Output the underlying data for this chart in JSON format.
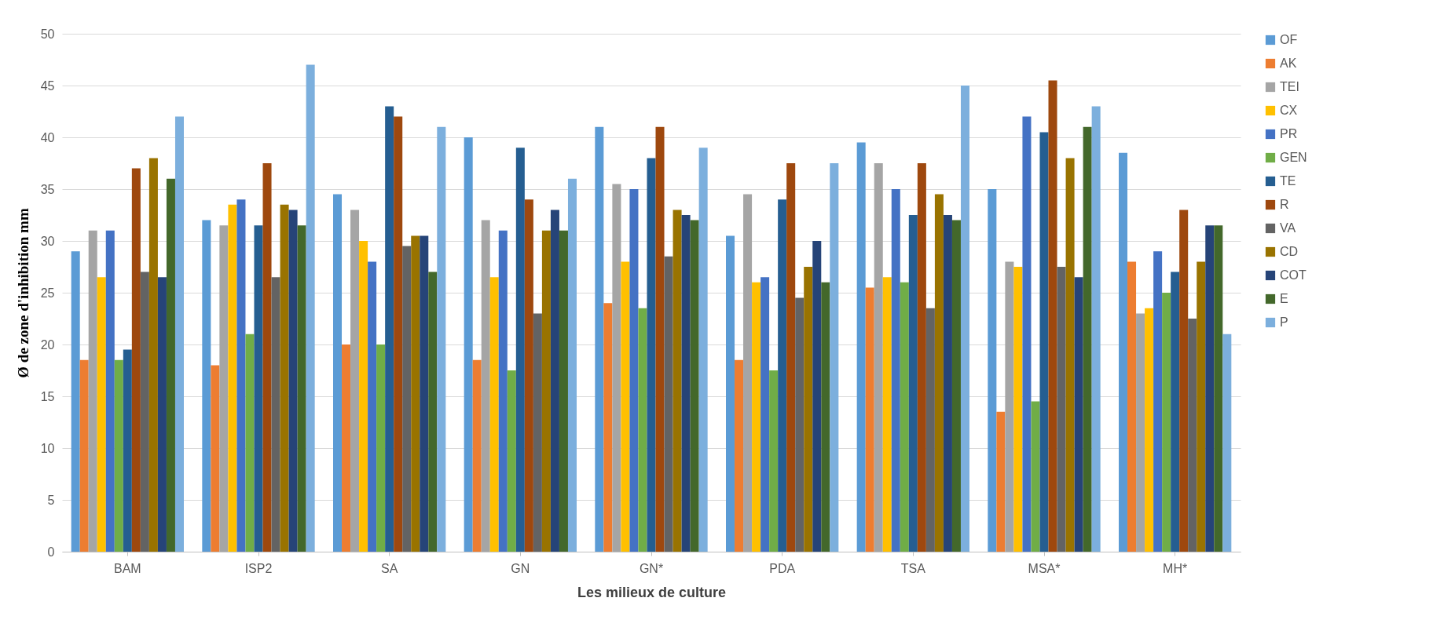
{
  "chart_data": {
    "type": "bar",
    "xlabel": "Les milieux de culture",
    "ylabel": "Ø de zone d'inhibition mm",
    "categories": [
      "BAM",
      "ISP2",
      "SA",
      "GN",
      "GN*",
      "PDA",
      "TSA",
      "MSA*",
      "MH*"
    ],
    "series": [
      {
        "name": "OF",
        "color": "#5b9bd5",
        "values": [
          29,
          32,
          34.5,
          40,
          41,
          30.5,
          39.5,
          35,
          38.5
        ]
      },
      {
        "name": "AK",
        "color": "#ed7d31",
        "values": [
          18.5,
          18,
          20,
          18.5,
          24,
          18.5,
          25.5,
          13.5,
          28
        ]
      },
      {
        "name": "TEI",
        "color": "#a5a5a5",
        "values": [
          31,
          31.5,
          33,
          32,
          35.5,
          34.5,
          37.5,
          28,
          23
        ]
      },
      {
        "name": "CX",
        "color": "#ffc000",
        "values": [
          26.5,
          33.5,
          30,
          26.5,
          28,
          26,
          26.5,
          27.5,
          23.5
        ]
      },
      {
        "name": "PR",
        "color": "#4472c4",
        "values": [
          31,
          34,
          28,
          31,
          35,
          26.5,
          35,
          42,
          29
        ]
      },
      {
        "name": "GEN",
        "color": "#70ad47",
        "values": [
          18.5,
          21,
          20,
          17.5,
          23.5,
          17.5,
          26,
          14.5,
          25
        ]
      },
      {
        "name": "TE",
        "color": "#255e91",
        "values": [
          19.5,
          31.5,
          43,
          39,
          38,
          34,
          32.5,
          40.5,
          27
        ]
      },
      {
        "name": "R",
        "color": "#9e480e",
        "values": [
          37,
          37.5,
          42,
          34,
          41,
          37.5,
          37.5,
          45.5,
          33
        ]
      },
      {
        "name": "VA",
        "color": "#636363",
        "values": [
          27,
          26.5,
          29.5,
          23,
          28.5,
          24.5,
          23.5,
          27.5,
          22.5
        ]
      },
      {
        "name": "CD",
        "color": "#997300",
        "values": [
          38,
          33.5,
          30.5,
          31,
          33,
          27.5,
          34.5,
          38,
          28
        ]
      },
      {
        "name": "COT",
        "color": "#264478",
        "values": [
          26.5,
          33,
          30.5,
          33,
          32.5,
          30,
          32.5,
          26.5,
          31.5
        ]
      },
      {
        "name": "E",
        "color": "#43682b",
        "values": [
          36,
          31.5,
          27,
          31,
          32,
          26,
          32,
          41,
          31.5
        ]
      },
      {
        "name": "P",
        "color": "#7cafdd",
        "values": [
          42,
          47,
          41,
          36,
          39,
          37.5,
          45,
          43,
          21
        ]
      }
    ],
    "ylim": [
      0,
      50
    ],
    "yticks": [
      0,
      5,
      10,
      15,
      20,
      25,
      30,
      35,
      40,
      45,
      50
    ],
    "grid": "y",
    "legend": "right"
  }
}
